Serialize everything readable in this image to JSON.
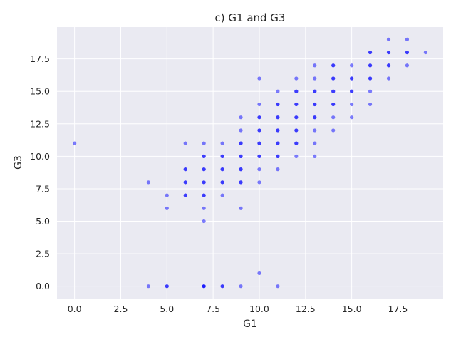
{
  "chart_data": {
    "type": "scatter",
    "title": "c) G1 and G3",
    "xlabel": "G1",
    "ylabel": "G3",
    "xlim": [
      -0.95,
      19.95
    ],
    "ylim": [
      -0.95,
      19.95
    ],
    "xticks": [
      0.0,
      2.5,
      5.0,
      7.5,
      10.0,
      12.5,
      15.0,
      17.5
    ],
    "yticks": [
      0.0,
      2.5,
      5.0,
      7.5,
      10.0,
      12.5,
      15.0,
      17.5
    ],
    "xtick_labels": [
      "0.0",
      "2.5",
      "5.0",
      "7.5",
      "10.0",
      "12.5",
      "15.0",
      "17.5"
    ],
    "ytick_labels": [
      "0.0",
      "2.5",
      "5.0",
      "7.5",
      "10.0",
      "12.5",
      "15.0",
      "17.5"
    ],
    "grid": true,
    "background": "#eaeaf2",
    "grid_color": "#ffffff",
    "marker_color": "#0000ff",
    "points": [
      [
        0,
        11
      ],
      [
        4,
        8
      ],
      [
        4,
        0
      ],
      [
        5,
        7
      ],
      [
        5,
        6
      ],
      [
        5,
        0
      ],
      [
        5,
        0
      ],
      [
        6,
        11
      ],
      [
        6,
        9
      ],
      [
        6,
        9
      ],
      [
        6,
        8
      ],
      [
        6,
        8
      ],
      [
        6,
        7
      ],
      [
        6,
        7
      ],
      [
        7,
        11
      ],
      [
        7,
        10
      ],
      [
        7,
        10
      ],
      [
        7,
        9
      ],
      [
        7,
        9
      ],
      [
        7,
        8
      ],
      [
        7,
        8
      ],
      [
        7,
        7
      ],
      [
        7,
        7
      ],
      [
        7,
        6
      ],
      [
        7,
        5
      ],
      [
        7,
        0
      ],
      [
        7,
        0
      ],
      [
        7,
        0
      ],
      [
        8,
        11
      ],
      [
        8,
        10
      ],
      [
        8,
        10
      ],
      [
        8,
        9
      ],
      [
        8,
        9
      ],
      [
        8,
        8
      ],
      [
        8,
        8
      ],
      [
        8,
        7
      ],
      [
        8,
        0
      ],
      [
        8,
        0
      ],
      [
        9,
        13
      ],
      [
        9,
        12
      ],
      [
        9,
        11
      ],
      [
        9,
        11
      ],
      [
        9,
        10
      ],
      [
        9,
        10
      ],
      [
        9,
        9
      ],
      [
        9,
        9
      ],
      [
        9,
        8
      ],
      [
        9,
        8
      ],
      [
        9,
        6
      ],
      [
        9,
        0
      ],
      [
        10,
        16
      ],
      [
        10,
        14
      ],
      [
        10,
        13
      ],
      [
        10,
        13
      ],
      [
        10,
        12
      ],
      [
        10,
        12
      ],
      [
        10,
        11
      ],
      [
        10,
        11
      ],
      [
        10,
        10
      ],
      [
        10,
        10
      ],
      [
        10,
        9
      ],
      [
        10,
        8
      ],
      [
        10,
        1
      ],
      [
        11,
        15
      ],
      [
        11,
        14
      ],
      [
        11,
        14
      ],
      [
        11,
        13
      ],
      [
        11,
        13
      ],
      [
        11,
        12
      ],
      [
        11,
        12
      ],
      [
        11,
        11
      ],
      [
        11,
        11
      ],
      [
        11,
        10
      ],
      [
        11,
        10
      ],
      [
        11,
        9
      ],
      [
        11,
        0
      ],
      [
        12,
        16
      ],
      [
        12,
        15
      ],
      [
        12,
        15
      ],
      [
        12,
        14
      ],
      [
        12,
        14
      ],
      [
        12,
        13
      ],
      [
        12,
        13
      ],
      [
        12,
        12
      ],
      [
        12,
        12
      ],
      [
        12,
        11
      ],
      [
        12,
        11
      ],
      [
        12,
        10
      ],
      [
        13,
        17
      ],
      [
        13,
        16
      ],
      [
        13,
        15
      ],
      [
        13,
        15
      ],
      [
        13,
        14
      ],
      [
        13,
        14
      ],
      [
        13,
        13
      ],
      [
        13,
        13
      ],
      [
        13,
        12
      ],
      [
        13,
        11
      ],
      [
        13,
        10
      ],
      [
        14,
        17
      ],
      [
        14,
        17
      ],
      [
        14,
        16
      ],
      [
        14,
        16
      ],
      [
        14,
        15
      ],
      [
        14,
        15
      ],
      [
        14,
        14
      ],
      [
        14,
        14
      ],
      [
        14,
        13
      ],
      [
        14,
        12
      ],
      [
        15,
        17
      ],
      [
        15,
        16
      ],
      [
        15,
        16
      ],
      [
        15,
        15
      ],
      [
        15,
        15
      ],
      [
        15,
        14
      ],
      [
        15,
        13
      ],
      [
        16,
        18
      ],
      [
        16,
        18
      ],
      [
        16,
        17
      ],
      [
        16,
        17
      ],
      [
        16,
        16
      ],
      [
        16,
        16
      ],
      [
        16,
        15
      ],
      [
        16,
        14
      ],
      [
        17,
        19
      ],
      [
        17,
        18
      ],
      [
        17,
        18
      ],
      [
        17,
        17
      ],
      [
        17,
        17
      ],
      [
        17,
        16
      ],
      [
        18,
        19
      ],
      [
        18,
        18
      ],
      [
        18,
        18
      ],
      [
        18,
        17
      ],
      [
        19,
        18
      ]
    ]
  }
}
